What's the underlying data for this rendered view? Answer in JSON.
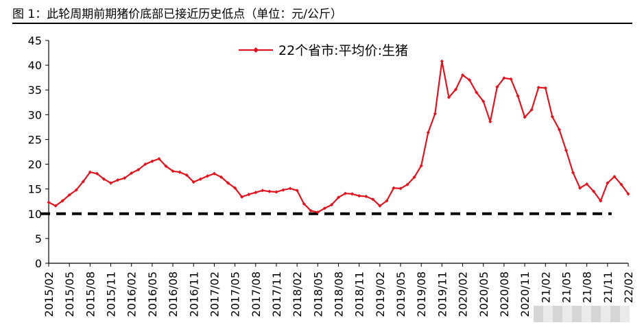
{
  "figure": {
    "title": "图 1：此轮周期前期猪价底部已接近历史低点（单位：元/公斤）"
  },
  "chart_data": {
    "type": "line",
    "title": "",
    "xlabel": "",
    "ylabel": "",
    "ylim": [
      0,
      45
    ],
    "yticks": [
      0,
      5,
      10,
      15,
      20,
      25,
      30,
      35,
      40,
      45
    ],
    "x_tick_labels": [
      "2015/02",
      "2015/05",
      "2015/08",
      "2015/11",
      "2016/02",
      "2016/05",
      "2016/08",
      "2016/11",
      "2017/02",
      "2017/05",
      "2017/08",
      "2017/11",
      "2018/02",
      "2018/05",
      "2018/08",
      "2018/11",
      "2019/02",
      "2019/05",
      "2019/08",
      "2019/11",
      "2020/02",
      "2020/05",
      "2020/08",
      "2020/11",
      "2021/02",
      "2021/05",
      "2021/08",
      "2021/11",
      "2022/02"
    ],
    "x_tick_labels_visible": [
      "2015/02",
      "2015/05",
      "2015/08",
      "2015/11",
      "2016/02",
      "2016/05",
      "2016/08",
      "2016/11",
      "2017/02",
      "2017/05",
      "2017/08",
      "2017/11",
      "2018/02",
      "2018/05",
      "2018/08",
      "2018/11",
      "2019/02",
      "2019/05",
      "2019/08",
      "2019/11",
      "2020/02",
      "2020/05",
      "2020/08",
      "2020/11",
      "21/02",
      "21/05",
      "21/08",
      "21/11",
      "22/02"
    ],
    "legend": {
      "position": "top-center"
    },
    "grid": false,
    "series": [
      {
        "name": "22个省市:平均价:生猪",
        "color": "#e0141e",
        "marker": "diamond",
        "points": [
          [
            "2015/02",
            12.3
          ],
          [
            "2015/03",
            11.6
          ],
          [
            "2015/04",
            12.6
          ],
          [
            "2015/05",
            13.8
          ],
          [
            "2015/06",
            14.8
          ],
          [
            "2015/07",
            16.5
          ],
          [
            "2015/08",
            18.4
          ],
          [
            "2015/09",
            18.1
          ],
          [
            "2015/10",
            17.0
          ],
          [
            "2015/11",
            16.2
          ],
          [
            "2015/12",
            16.8
          ],
          [
            "2016/01",
            17.2
          ],
          [
            "2016/02",
            18.2
          ],
          [
            "2016/03",
            18.9
          ],
          [
            "2016/04",
            20.0
          ],
          [
            "2016/05",
            20.6
          ],
          [
            "2016/06",
            21.1
          ],
          [
            "2016/07",
            19.6
          ],
          [
            "2016/08",
            18.6
          ],
          [
            "2016/09",
            18.4
          ],
          [
            "2016/10",
            17.8
          ],
          [
            "2016/11",
            16.4
          ],
          [
            "2016/12",
            17.0
          ],
          [
            "2017/01",
            17.6
          ],
          [
            "2017/02",
            18.1
          ],
          [
            "2017/03",
            17.4
          ],
          [
            "2017/04",
            16.2
          ],
          [
            "2017/05",
            15.2
          ],
          [
            "2017/06",
            13.4
          ],
          [
            "2017/07",
            13.9
          ],
          [
            "2017/08",
            14.3
          ],
          [
            "2017/09",
            14.7
          ],
          [
            "2017/10",
            14.5
          ],
          [
            "2017/11",
            14.4
          ],
          [
            "2017/12",
            14.8
          ],
          [
            "2018/01",
            15.1
          ],
          [
            "2018/02",
            14.7
          ],
          [
            "2018/03",
            12.0
          ],
          [
            "2018/04",
            10.6
          ],
          [
            "2018/05",
            10.3
          ],
          [
            "2018/06",
            11.1
          ],
          [
            "2018/07",
            11.8
          ],
          [
            "2018/08",
            13.3
          ],
          [
            "2018/09",
            14.1
          ],
          [
            "2018/10",
            14.0
          ],
          [
            "2018/11",
            13.6
          ],
          [
            "2018/12",
            13.5
          ],
          [
            "2019/01",
            12.9
          ],
          [
            "2019/02",
            11.6
          ],
          [
            "2019/03",
            12.6
          ],
          [
            "2019/04",
            15.2
          ],
          [
            "2019/05",
            15.1
          ],
          [
            "2019/06",
            15.9
          ],
          [
            "2019/07",
            17.4
          ],
          [
            "2019/08",
            19.7
          ],
          [
            "2019/09",
            26.4
          ],
          [
            "2019/10",
            30.2
          ],
          [
            "2019/11",
            40.8
          ],
          [
            "2019/12",
            33.5
          ],
          [
            "2020/01",
            35.1
          ],
          [
            "2020/02",
            38.0
          ],
          [
            "2020/03",
            37.0
          ],
          [
            "2020/04",
            34.5
          ],
          [
            "2020/05",
            32.7
          ],
          [
            "2020/06",
            28.6
          ],
          [
            "2020/07",
            35.6
          ],
          [
            "2020/08",
            37.4
          ],
          [
            "2020/09",
            37.2
          ],
          [
            "2020/10",
            33.8
          ],
          [
            "2020/11",
            29.5
          ],
          [
            "2020/12",
            31.0
          ],
          [
            "2021/01",
            35.5
          ],
          [
            "2021/02",
            35.4
          ],
          [
            "2021/03",
            29.6
          ],
          [
            "2021/04",
            27.0
          ],
          [
            "2021/05",
            22.8
          ],
          [
            "2021/06",
            18.3
          ],
          [
            "2021/07",
            15.2
          ],
          [
            "2021/08",
            16.0
          ],
          [
            "2021/09",
            14.5
          ],
          [
            "2021/10",
            12.6
          ],
          [
            "2021/11",
            16.2
          ],
          [
            "2021/12",
            17.5
          ],
          [
            "2022/01",
            15.9
          ],
          [
            "2022/02",
            14.0
          ]
        ]
      }
    ],
    "reference_line": {
      "y": 10,
      "style": "dashed",
      "color": "#000000",
      "x_start": "2015/02",
      "x_end": "2021/11"
    }
  }
}
